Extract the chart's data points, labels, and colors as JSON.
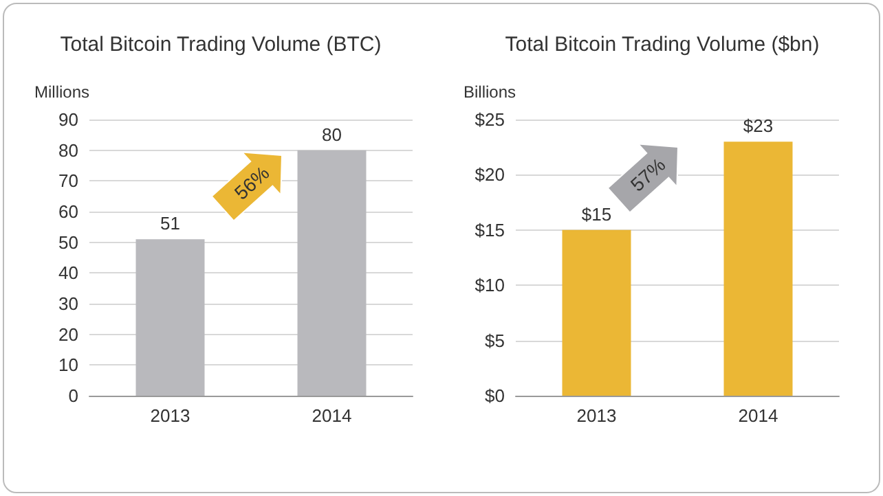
{
  "chart_data": [
    {
      "type": "bar",
      "title": "Total Bitcoin Trading Volume (BTC)",
      "ylabel": "Millions",
      "categories": [
        "2013",
        "2014"
      ],
      "values": [
        51,
        80
      ],
      "color": "#b9b9bd",
      "ylim": [
        0,
        90
      ],
      "yticks": [
        0,
        10,
        20,
        30,
        40,
        50,
        60,
        70,
        80,
        90
      ],
      "grid": "y",
      "data_labels": true,
      "annotations": [
        "56%"
      ]
    },
    {
      "type": "bar",
      "title": "Total Bitcoin Trading Volume ($bn)",
      "ylabel": "Billions",
      "categories": [
        "2013",
        "2014"
      ],
      "values": [
        15,
        23
      ],
      "value_labels": [
        "$15",
        "$23"
      ],
      "color": "#ebb735",
      "ylim": [
        0,
        25
      ],
      "yticks": [
        {
          "value": 0,
          "label": "$0"
        },
        {
          "value": 5,
          "label": "$5"
        },
        {
          "value": 10,
          "label": "$10"
        },
        {
          "value": 15,
          "label": "$15"
        },
        {
          "value": 20,
          "label": "$20"
        },
        {
          "value": 25,
          "label": "$25"
        }
      ],
      "grid": "y",
      "annotations": [
        "57%"
      ]
    }
  ]
}
